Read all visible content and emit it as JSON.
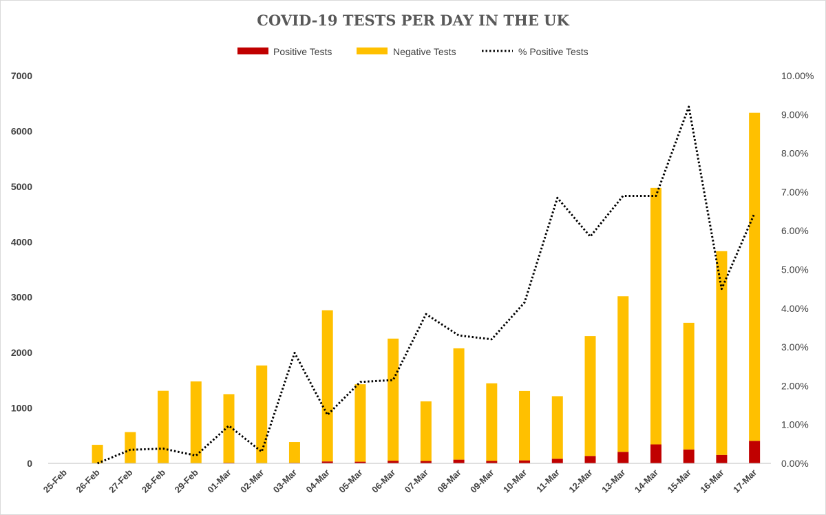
{
  "chart_data": {
    "type": "bar",
    "title": "COVID-19 TESTS PER DAY IN THE UK",
    "categories": [
      "25-Feb",
      "26-Feb",
      "27-Feb",
      "28-Feb",
      "29-Feb",
      "01-Mar",
      "02-Mar",
      "03-Mar",
      "04-Mar",
      "05-Mar",
      "06-Mar",
      "07-Mar",
      "08-Mar",
      "09-Mar",
      "10-Mar",
      "11-Mar",
      "12-Mar",
      "13-Mar",
      "14-Mar",
      "15-Mar",
      "16-Mar",
      "17-Mar"
    ],
    "series": [
      {
        "name": "Positive Tests",
        "type": "stacked-bar",
        "axis": "left",
        "color": "#C00000",
        "values": [
          0,
          0,
          2,
          5,
          3,
          12,
          4,
          11,
          35,
          30,
          48,
          43,
          67,
          46,
          54,
          83,
          134,
          208,
          342,
          251,
          152,
          407
        ]
      },
      {
        "name": "Negative Tests",
        "type": "stacked-bar",
        "axis": "left",
        "color": "#FFC000",
        "values": [
          0,
          335,
          563,
          1305,
          1477,
          1238,
          1764,
          374,
          2730,
          1398,
          2205,
          1077,
          2010,
          1400,
          1253,
          1130,
          2165,
          2810,
          4633,
          2287,
          3680,
          5925
        ]
      },
      {
        "name": "% Positive Tests",
        "type": "line",
        "axis": "right",
        "color": "#000000",
        "style": "dotted",
        "values": [
          null,
          0.0,
          0.35,
          0.38,
          0.2,
          0.97,
          0.3,
          2.85,
          1.25,
          2.1,
          2.15,
          3.85,
          3.3,
          3.2,
          4.15,
          6.85,
          5.85,
          6.9,
          6.9,
          9.2,
          4.5,
          6.45
        ]
      }
    ],
    "y_left": {
      "min": 0,
      "max": 7000,
      "ticks": [
        "0",
        "1000",
        "2000",
        "3000",
        "4000",
        "5000",
        "6000",
        "7000"
      ]
    },
    "y_right": {
      "min": 0,
      "max": 10,
      "ticks": [
        "0.00%",
        "1.00%",
        "2.00%",
        "3.00%",
        "4.00%",
        "5.00%",
        "6.00%",
        "7.00%",
        "8.00%",
        "9.00%",
        "10.00%"
      ]
    },
    "legend_position": "top",
    "grid": false
  }
}
